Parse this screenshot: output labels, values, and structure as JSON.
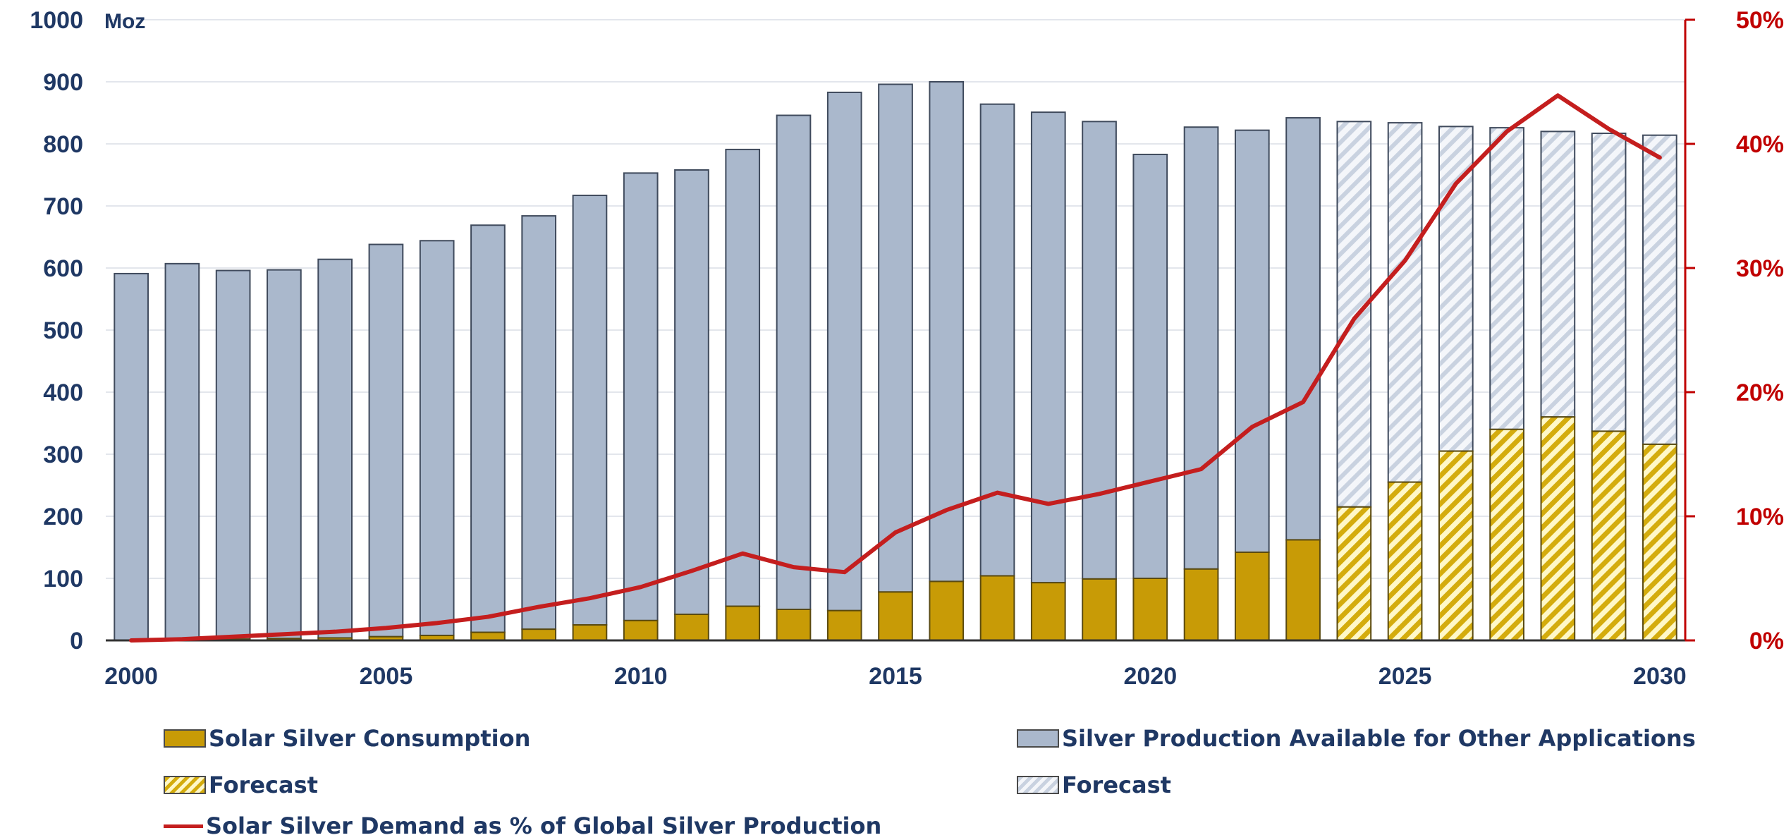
{
  "chart_data": {
    "type": "bar",
    "stacked": true,
    "x": [
      2000,
      2001,
      2002,
      2003,
      2004,
      2005,
      2006,
      2007,
      2008,
      2009,
      2010,
      2011,
      2012,
      2013,
      2014,
      2015,
      2016,
      2017,
      2018,
      2019,
      2020,
      2021,
      2022,
      2023,
      2024,
      2025,
      2026,
      2027,
      2028,
      2029,
      2030
    ],
    "forecast_from": 2024,
    "series": [
      {
        "name": "Solar Silver Consumption",
        "forecast_name": "Forecast",
        "stack_position": "bottom",
        "values": [
          0,
          1,
          2,
          3,
          4,
          6,
          8,
          13,
          18,
          25,
          32,
          42,
          55,
          50,
          48,
          78,
          95,
          104,
          93,
          99,
          100,
          115,
          142,
          162,
          215,
          255,
          305,
          340,
          360,
          337,
          316
        ]
      },
      {
        "name": "Silver Production Available for Other Applications",
        "forecast_name": "Forecast",
        "stack_position": "top",
        "values": [
          591,
          606,
          594,
          594,
          610,
          632,
          636,
          656,
          666,
          692,
          721,
          716,
          736,
          796,
          835,
          818,
          805,
          760,
          758,
          737,
          683,
          712,
          680,
          680,
          621,
          579,
          523,
          486,
          460,
          480,
          498
        ]
      },
      {
        "name": "Solar Silver Demand as % of Global Silver Production",
        "type": "line",
        "axis": "right",
        "values": [
          0.0,
          0.1,
          0.3,
          0.5,
          0.7,
          1.0,
          1.4,
          1.9,
          2.7,
          3.4,
          4.3,
          5.6,
          7.0,
          5.9,
          5.5,
          8.7,
          10.5,
          11.9,
          11.0,
          11.8,
          12.8,
          13.8,
          17.2,
          19.2,
          25.9,
          30.6,
          36.8,
          41.0,
          43.9,
          41.2,
          38.9
        ]
      }
    ],
    "y_unit": "Moz",
    "ylim": [
      0,
      1000
    ],
    "yticks": [
      "0",
      "100",
      "200",
      "300",
      "400",
      "500",
      "600",
      "700",
      "800",
      "900",
      "1000"
    ],
    "y2lim": [
      0,
      50
    ],
    "y2ticks": [
      "0%",
      "10%",
      "20%",
      "30%",
      "40%",
      "50%"
    ],
    "xticks": [
      "2000",
      "2005",
      "2010",
      "2015",
      "2020",
      "2025",
      "2030"
    ],
    "grid": true,
    "legend_position": "bottom",
    "legend": [
      "Solar Silver Consumption",
      "Silver Production Available for Other Applications",
      "Forecast",
      "Forecast",
      "Solar Silver Demand as % of Global Silver Production"
    ],
    "colors": {
      "solar": "#c89b06",
      "solar_forecast": "#d4ac0d",
      "other": "#aab8cc",
      "other_forecast": "#c9d2e0",
      "line": "#c41e1e",
      "left_axis_text": "#1f3864",
      "right_axis": "#c00000"
    }
  }
}
